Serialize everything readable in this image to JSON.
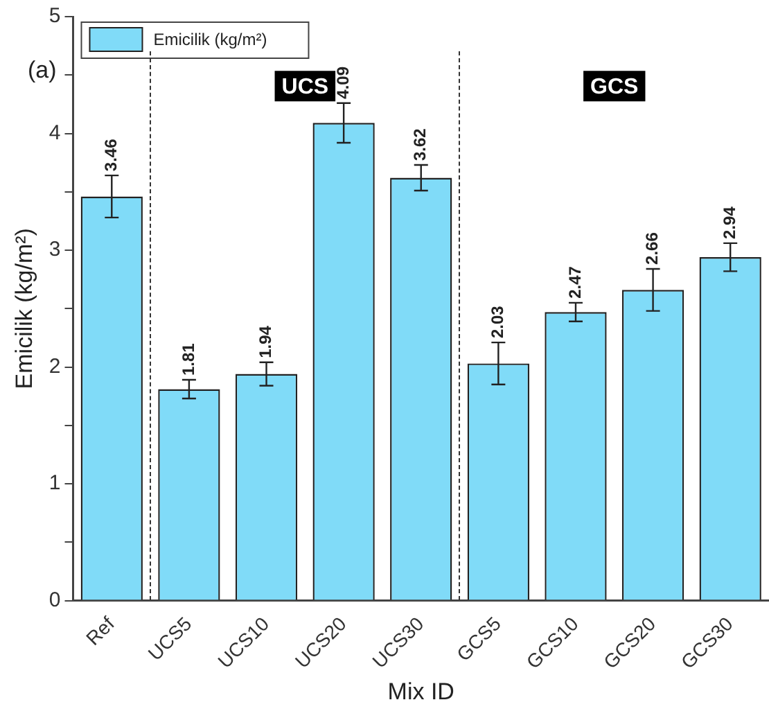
{
  "chart_data": {
    "type": "bar",
    "xlabel": "Mix ID",
    "ylabel": "Emicilik (kg/m²)",
    "categories": [
      "Ref",
      "UCS5",
      "UCS10",
      "UCS20",
      "UCS30",
      "GCS5",
      "GCS10",
      "GCS20",
      "GCS30"
    ],
    "series": [
      {
        "name": "Emicilik (kg/m²)",
        "color": "#80dbf8",
        "values": [
          3.46,
          1.81,
          1.94,
          4.09,
          3.62,
          2.03,
          2.47,
          2.66,
          2.94
        ],
        "errors": [
          0.18,
          0.08,
          0.1,
          0.17,
          0.11,
          0.18,
          0.08,
          0.18,
          0.12
        ]
      }
    ],
    "ylim": [
      0,
      5
    ],
    "yticks": [
      0,
      {
        "value": 0.5,
        "label": null
      },
      1,
      {
        "value": 1.5,
        "label": null
      },
      2,
      {
        "value": 2.5,
        "label": null
      },
      3,
      {
        "value": 3.5,
        "label": null
      },
      4,
      {
        "value": 4.5,
        "label": null
      },
      5
    ],
    "data_labels": true,
    "grid": false,
    "legend": "top left",
    "annotations": [
      "(a)",
      "UCS",
      "GCS"
    ]
  }
}
